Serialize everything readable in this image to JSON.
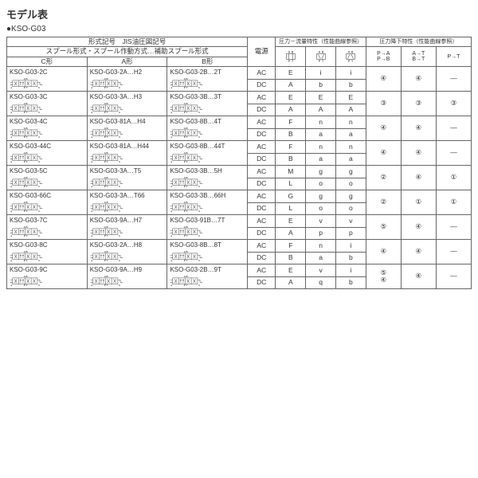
{
  "title": "モデル表",
  "subtitle": "●KSO-G03",
  "headers": {
    "model_jis": "形式記号　JIS油圧図記号",
    "spool": "スプール形式・スプール作動方式…補助スプール形式",
    "c_type": "C形",
    "a_type": "A形",
    "b_type": "B形",
    "power": "電源",
    "pressure_flow": "圧力－流量特性（性能曲線参照）",
    "pressure_drop": "圧力降下特性（性能曲線参照）",
    "pa": "P→A\nP→B",
    "at": "A→T\nB→T",
    "pt": "P→T"
  },
  "icon_labels": {
    "ab": "A B",
    "pt": "P T",
    "apt": "A P B\nT",
    "abpt": "A B\nP T"
  },
  "rows": [
    {
      "c": "KSO-G03-2C",
      "a": "KSO-G03-2A…H2",
      "b": "KSO-G03-2B…2T",
      "ac": [
        "E",
        "i",
        "i"
      ],
      "dc": [
        "A",
        "b",
        "b"
      ],
      "pa": "④",
      "at": "④",
      "pt": "—"
    },
    {
      "c": "KSO-G03-3C",
      "a": "KSO-G03-3A…H3",
      "b": "KSO-G03-3B…3T",
      "ac": [
        "E",
        "E",
        "E"
      ],
      "dc": [
        "A",
        "A",
        "A"
      ],
      "pa": "③",
      "at": "③",
      "pt": "③"
    },
    {
      "c": "KSO-G03-4C",
      "a": "KSO-G03-81A…H4",
      "b": "KSO-G03-8B…4T",
      "ac": [
        "F",
        "n",
        "n"
      ],
      "dc": [
        "B",
        "a",
        "a"
      ],
      "pa": "④",
      "at": "④",
      "pt": "—"
    },
    {
      "c": "KSO-G03-44C",
      "a": "KSO-G03-81A…H44",
      "b": "KSO-G03-8B…44T",
      "ac": [
        "F",
        "n",
        "n"
      ],
      "dc": [
        "B",
        "a",
        "a"
      ],
      "pa": "④",
      "at": "④",
      "pt": "—"
    },
    {
      "c": "KSO-G03-5C",
      "a": "KSO-G03-3A…T5",
      "b": "KSO-G03-3B…5H",
      "ac": [
        "M",
        "g",
        "g"
      ],
      "dc": [
        "L",
        "o",
        "o"
      ],
      "pa": "②",
      "at": "④",
      "pt": "①"
    },
    {
      "c": "KSO-G03-66C",
      "a": "KSO-G03-3A…T66",
      "b": "KSO-G03-3B…66H",
      "ac": [
        "G",
        "g",
        "g"
      ],
      "dc": [
        "L",
        "o",
        "o"
      ],
      "pa": "②",
      "at": "①",
      "pt": "①"
    },
    {
      "c": "KSO-G03-7C",
      "a": "KSO-G03-9A…H7",
      "b": "KSO-G03-91B…7T",
      "ac": [
        "E",
        "v",
        "v"
      ],
      "dc": [
        "A",
        "p",
        "p"
      ],
      "pa": "⑤",
      "at": "④",
      "pt": "—"
    },
    {
      "c": "KSO-G03-8C",
      "a": "KSO-G03-2A…H8",
      "b": "KSO-G03-8B…8T",
      "ac": [
        "F",
        "n",
        "i"
      ],
      "dc": [
        "B",
        "a",
        "b"
      ],
      "pa": "④",
      "at": "④",
      "pt": "—"
    },
    {
      "c": "KSO-G03-9C",
      "a": "KSO-G03-9A…H9",
      "b": "KSO-G03-2B…9T",
      "ac": [
        "E",
        "v",
        "i"
      ],
      "dc": [
        "A",
        "q",
        "b"
      ],
      "pa": "⑤\n④",
      "at": "④",
      "pt": "—"
    }
  ]
}
